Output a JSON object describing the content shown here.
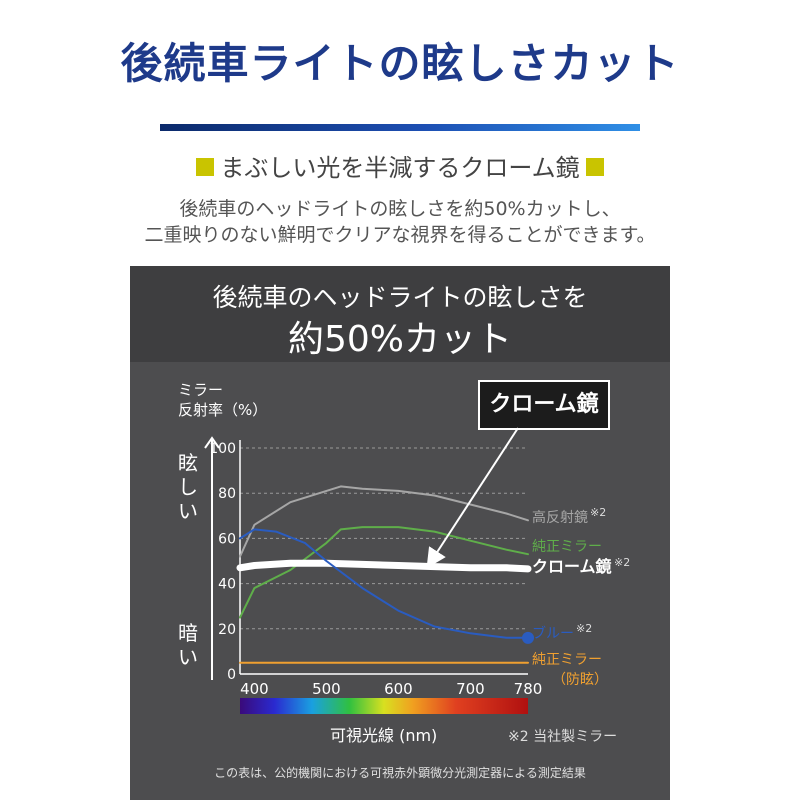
{
  "header": {
    "title": "後続車ライトの眩しさカット",
    "subtitle": "まぶしい光を半減するクローム鏡",
    "description_line1": "後続車のヘッドライトの眩しさを約50%カットし、",
    "description_line2": "二重映りのない鮮明でクリアな視界を得ることができます。"
  },
  "panel": {
    "heading_line1": "後続車のヘッドライトの眩しさを",
    "heading_line2": "約50%カット",
    "callout": "クローム鏡",
    "footnote": "この表は、公的機関における可視赤外顕微分光測定器による測定結果",
    "maker_note": "※2 当社製ミラー"
  },
  "chart_data": {
    "type": "line",
    "ylabel_line1": "ミラー",
    "ylabel_line2": "反射率（%）",
    "y_top_label": "眩しい",
    "y_bottom_label": "暗い",
    "xlabel": "可視光線 (nm)",
    "xlim": [
      380,
      780
    ],
    "ylim": [
      0,
      100
    ],
    "x_ticks": [
      400,
      500,
      600,
      700,
      780
    ],
    "y_ticks": [
      0,
      20,
      40,
      60,
      80,
      100
    ],
    "grid": true,
    "series": [
      {
        "name": "高反射鏡",
        "note": "※2",
        "color": "#a6a6a6",
        "width": 2,
        "x": [
          380,
          400,
          450,
          500,
          520,
          550,
          600,
          650,
          700,
          750,
          780
        ],
        "y": [
          52,
          66,
          76,
          81,
          83,
          82,
          81,
          79,
          75,
          71,
          68
        ]
      },
      {
        "name": "純正ミラー",
        "note": "",
        "color": "#5fae4a",
        "width": 2,
        "x": [
          380,
          400,
          450,
          500,
          520,
          550,
          600,
          650,
          700,
          750,
          780
        ],
        "y": [
          25,
          38,
          46,
          58,
          64,
          65,
          65,
          63,
          59,
          55,
          53
        ]
      },
      {
        "name": "クローム鏡",
        "note": "※2",
        "color": "#ffffff",
        "width": 7,
        "x": [
          380,
          400,
          450,
          500,
          550,
          600,
          650,
          700,
          750,
          780
        ],
        "y": [
          47,
          48,
          49,
          49,
          48.5,
          48,
          47.5,
          47,
          47,
          46.5
        ]
      },
      {
        "name": "ブルー",
        "note": "※2",
        "color": "#2a5cc0",
        "width": 2,
        "x": [
          380,
          400,
          430,
          470,
          500,
          550,
          600,
          650,
          700,
          750,
          780
        ],
        "y": [
          60,
          64,
          63,
          58,
          50,
          38,
          28,
          21,
          18,
          16,
          16
        ]
      },
      {
        "name": "純正ミラー",
        "note": "（防眩）",
        "color": "#f0a030",
        "width": 2,
        "x": [
          380,
          780
        ],
        "y": [
          5,
          5
        ]
      }
    ]
  }
}
